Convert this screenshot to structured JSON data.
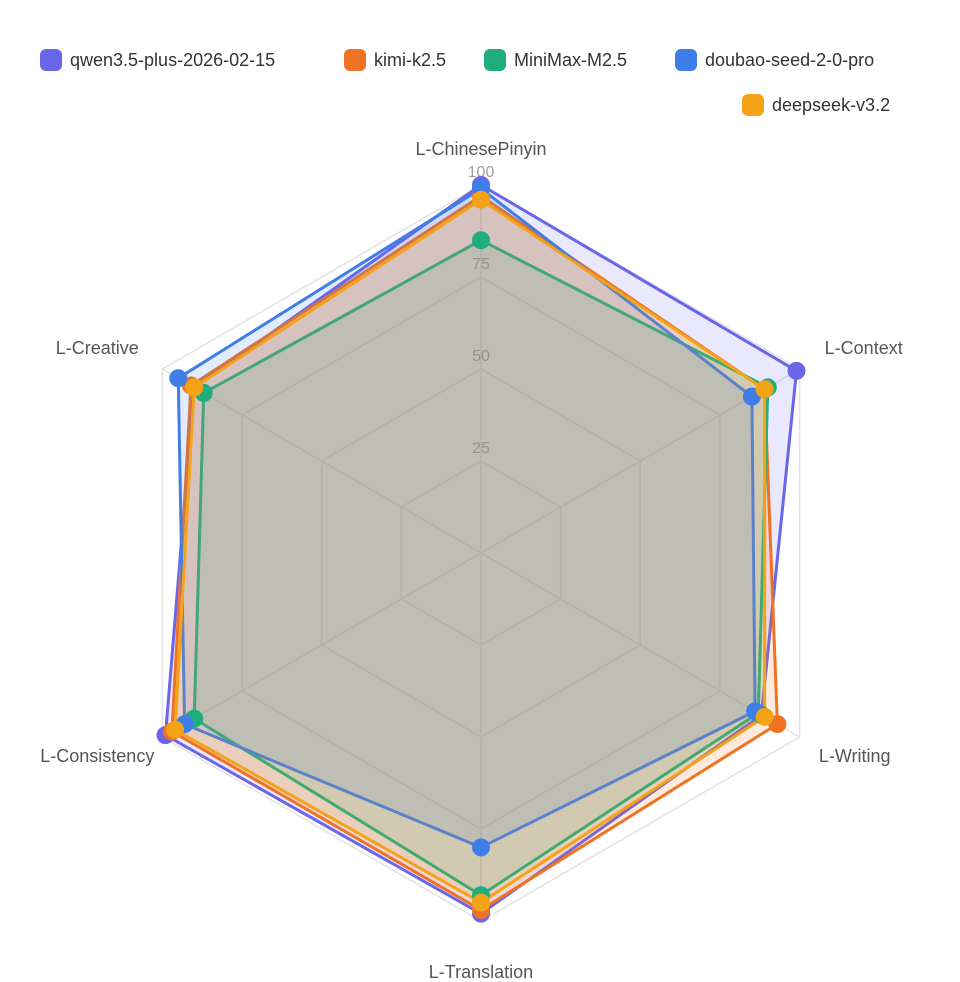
{
  "chart_data": {
    "type": "radar",
    "indicators": [
      "L-ChinesePinyin",
      "L-Context",
      "L-Writing",
      "L-Translation",
      "L-Consistency",
      "L-Creative"
    ],
    "max": 100,
    "ticks": [
      "25",
      "50",
      "75",
      "100"
    ],
    "legend_position": "top-right",
    "series": [
      {
        "name": "qwen3.5-plus-2026-02-15",
        "color": "#6a66e8",
        "values": [
          100,
          99,
          88,
          98,
          99,
          90
        ]
      },
      {
        "name": "kimi-k2.5",
        "color": "#f07223",
        "values": [
          97,
          89,
          93,
          97,
          97,
          91
        ]
      },
      {
        "name": "MiniMax-M2.5",
        "color": "#1fad7e",
        "values": [
          85,
          90,
          87,
          93,
          90,
          87
        ]
      },
      {
        "name": "doubao-seed-2-0-pro",
        "color": "#3f7de8",
        "values": [
          99,
          85,
          86,
          80,
          93,
          95
        ]
      },
      {
        "name": "deepseek-v3.2",
        "color": "#f5a316",
        "values": [
          96,
          89,
          89,
          95,
          96,
          90
        ]
      }
    ]
  }
}
